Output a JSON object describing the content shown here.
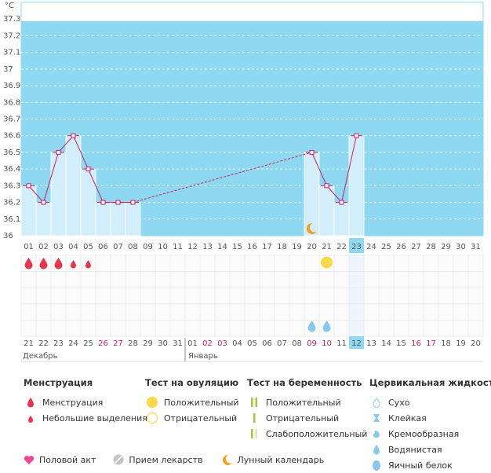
{
  "chart_data": {
    "type": "line",
    "title": "",
    "xlabel": "",
    "ylabel": "°C",
    "ylim": [
      36,
      37.4
    ],
    "y_ticks": [
      "36",
      "36.1",
      "36.2",
      "36.3",
      "36.4",
      "36.5",
      "36.6",
      "36.7",
      "36.8",
      "36.9",
      "37",
      "37.1",
      "37.2",
      "37.3"
    ],
    "top_days": [
      "01",
      "02",
      "03",
      "04",
      "05",
      "06",
      "07",
      "08",
      "09",
      "10",
      "11",
      "12",
      "13",
      "14",
      "15",
      "16",
      "17",
      "18",
      "19",
      "20",
      "21",
      "22",
      "23",
      "24",
      "25",
      "26",
      "27",
      "28",
      "29",
      "30",
      "31"
    ],
    "current_day": "23",
    "temperatures": [
      {
        "day": "01",
        "value": 36.3
      },
      {
        "day": "02",
        "value": 36.2
      },
      {
        "day": "03",
        "value": 36.5
      },
      {
        "day": "04",
        "value": 36.6
      },
      {
        "day": "05",
        "value": 36.4
      },
      {
        "day": "06",
        "value": 36.2
      },
      {
        "day": "07",
        "value": 36.2
      },
      {
        "day": "08",
        "value": 36.2
      },
      {
        "day": "20",
        "value": 36.5
      },
      {
        "day": "21",
        "value": 36.3
      },
      {
        "day": "22",
        "value": 36.2
      },
      {
        "day": "23",
        "value": 36.6
      }
    ],
    "date_labels": [
      {
        "text": "21",
        "red": false
      },
      {
        "text": "22",
        "red": false
      },
      {
        "text": "23",
        "red": false
      },
      {
        "text": "24",
        "red": false
      },
      {
        "text": "25",
        "red": false
      },
      {
        "text": "26",
        "red": true
      },
      {
        "text": "27",
        "red": true
      },
      {
        "text": "28",
        "red": false
      },
      {
        "text": "29",
        "red": false
      },
      {
        "text": "30",
        "red": false
      },
      {
        "text": "31",
        "red": false
      },
      {
        "text": "01",
        "red": false
      },
      {
        "text": "02",
        "red": true
      },
      {
        "text": "03",
        "red": true
      },
      {
        "text": "04",
        "red": false
      },
      {
        "text": "05",
        "red": false
      },
      {
        "text": "06",
        "red": false
      },
      {
        "text": "07",
        "red": false
      },
      {
        "text": "08",
        "red": false
      },
      {
        "text": "09",
        "red": true
      },
      {
        "text": "10",
        "red": true
      },
      {
        "text": "11",
        "red": false
      },
      {
        "text": "12",
        "red": false
      },
      {
        "text": "13",
        "red": false
      },
      {
        "text": "14",
        "red": false
      },
      {
        "text": "15",
        "red": false
      },
      {
        "text": "16",
        "red": true
      },
      {
        "text": "17",
        "red": true
      },
      {
        "text": "18",
        "red": false
      },
      {
        "text": "19",
        "red": false
      },
      {
        "text": "20",
        "red": false
      }
    ],
    "current_date_label": "12",
    "month_labels": [
      "Декабрь",
      "Январь"
    ],
    "menstruation_days": [
      {
        "day": "01",
        "type": "heavy"
      },
      {
        "day": "02",
        "type": "heavy"
      },
      {
        "day": "03",
        "type": "heavy"
      },
      {
        "day": "04",
        "type": "light"
      },
      {
        "day": "05",
        "type": "light"
      }
    ],
    "ovulation_positive_day": "21",
    "moon_day": "20",
    "cervical_watery_days": [
      "20",
      "21"
    ]
  },
  "legend": {
    "menstruation": {
      "title": "Менструация",
      "items": [
        "Менструация",
        "Небольшие выделения"
      ]
    },
    "ovulation": {
      "title": "Тест на овуляцию",
      "items": [
        "Положительный",
        "Отрицательный"
      ]
    },
    "pregnancy": {
      "title": "Тест на беременность",
      "items": [
        "Положительный",
        "Отрицательный",
        "Слабоположительный"
      ]
    },
    "cervical": {
      "title": "Цервикальная жидкость",
      "items": [
        "Сухо",
        "Клейкая",
        "Кремообразная",
        "Водянистая",
        "Яичный белок"
      ]
    }
  },
  "bottom_legend": [
    "Половой акт",
    "Прием лекарств",
    "Лунный календарь"
  ],
  "colors": {
    "sky": "#8fd8f2",
    "bar": "#d2eefb",
    "line": "#cc1c5e",
    "drop": "#e8344e",
    "ovulation": "#f8d94a",
    "moon": "#f0a020",
    "cervical": "#86c9ef",
    "pregnancy": "#a3c83a",
    "heart": "#f2458f",
    "pill": "#c4c4c4"
  }
}
